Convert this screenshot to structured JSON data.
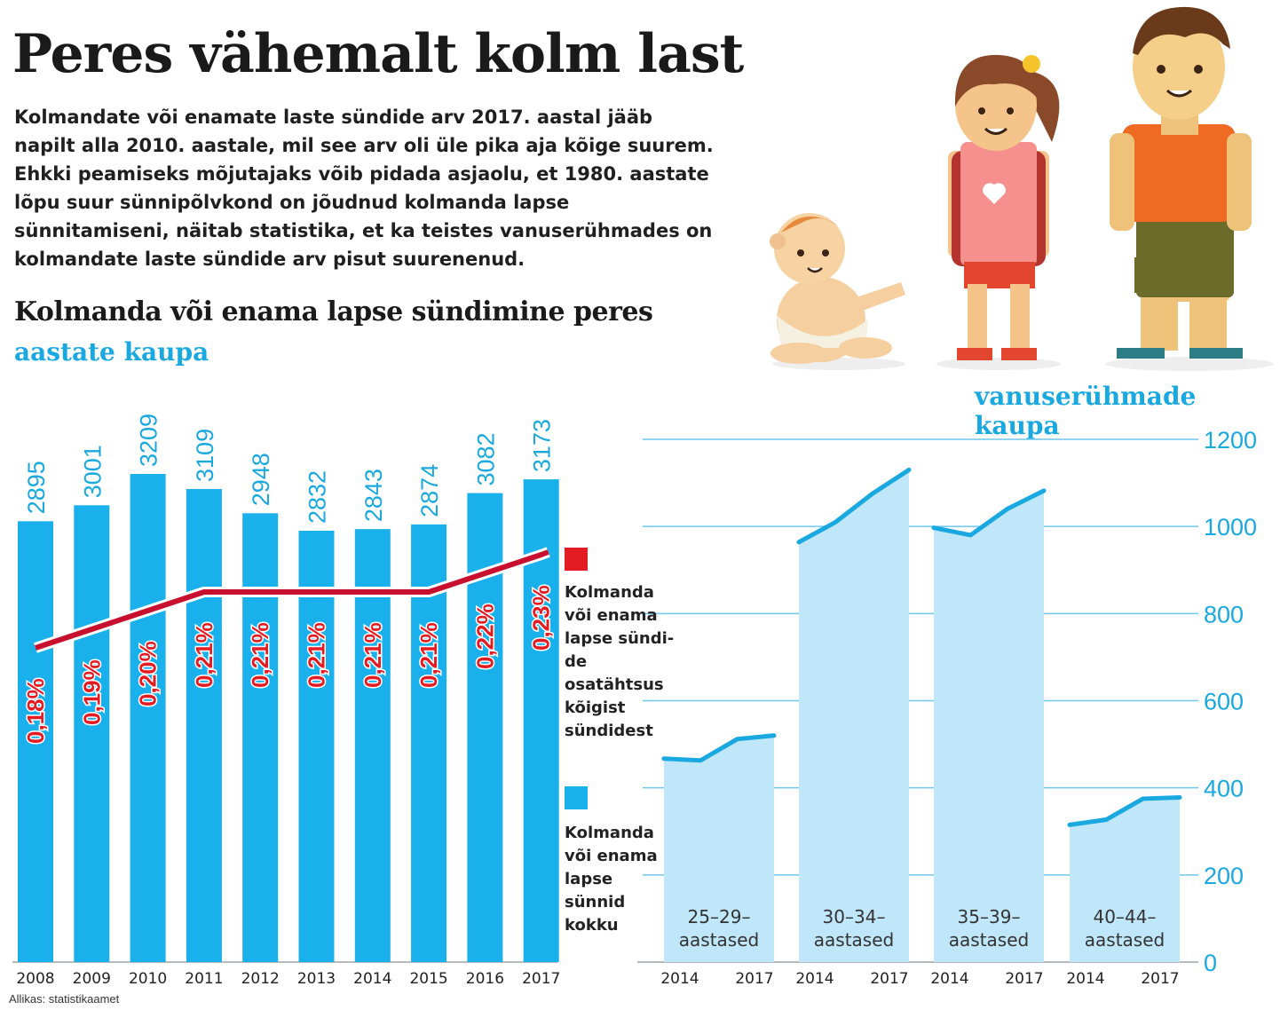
{
  "title": "Peres vähemalt kolm last",
  "intro": "Kolmandate või enamate laste sündide arv 2017. aastal jääb napilt alla 2010. aastale, mil see arv oli üle pika aja kõige suurem. Ehkki peamiseks mõjutajaks võib pidada asjaolu, et 1980. aastate lõpu suur sünnipõlvkond on jõudnud kolmanda lapse sünnitamiseni, näitab statistika, et ka teistes vanuserühmades on kolmandate laste sündide arv pisut suurenenud.",
  "subtitle": "Kolmanda või enama lapse sündimine peres",
  "by_year_label": "aastate kaupa",
  "by_age_label": "vanuserühmade kaupa",
  "source": "Allikas: statistikaamet",
  "legend": {
    "share": "Kolmanda\nvõi enama\nlapse sündi-\nde osatähtsus\nkõigist\nsündidest",
    "births": "Kolmanda\nvõi enama\nlapse\nsünnid\nkokku"
  },
  "colors": {
    "bar_blue": "#1ab0ec",
    "line_red": "#c8102e",
    "area_blue": "#bfe6f9",
    "area_line": "#19a8e0",
    "label_blue": "#19a8e0"
  },
  "chart_data": [
    {
      "type": "bar",
      "title": "aastate kaupa",
      "categories": [
        "2008",
        "2009",
        "2010",
        "2011",
        "2012",
        "2013",
        "2014",
        "2015",
        "2016",
        "2017"
      ],
      "series": [
        {
          "name": "Kolmanda või enama lapse sünnid kokku",
          "values": [
            2895,
            3001,
            3209,
            3109,
            2948,
            2832,
            2843,
            2874,
            3082,
            3173
          ]
        },
        {
          "name": "Kolmanda või enama lapse sündide osatähtsus kõigist sündidest",
          "type": "line",
          "values": [
            0.18,
            0.19,
            0.2,
            0.21,
            0.21,
            0.21,
            0.21,
            0.21,
            0.22,
            0.23
          ],
          "labels": [
            "0,18%",
            "0,19%",
            "0,20%",
            "0,21%",
            "0,21%",
            "0,21%",
            "0,21%",
            "0,21%",
            "0,22%",
            "0,23%"
          ]
        }
      ]
    },
    {
      "type": "area",
      "title": "vanuserühmade kaupa",
      "ylim": [
        0,
        1200
      ],
      "yticks": [
        0,
        200,
        400,
        600,
        800,
        1000,
        1200
      ],
      "groups": [
        {
          "name": "25–29–\naastased",
          "x": [
            "2014",
            "2015",
            "2016",
            "2017"
          ],
          "values": [
            467,
            463,
            512,
            520
          ]
        },
        {
          "name": "30–34–\naastased",
          "x": [
            "2014",
            "2015",
            "2016",
            "2017"
          ],
          "values": [
            964,
            1010,
            1075,
            1130
          ]
        },
        {
          "name": "35–39–\naastased",
          "x": [
            "2014",
            "2015",
            "2016",
            "2017"
          ],
          "values": [
            997,
            980,
            1040,
            1082
          ]
        },
        {
          "name": "40–44–\naastased",
          "x": [
            "2014",
            "2015",
            "2016",
            "2017"
          ],
          "values": [
            315,
            327,
            375,
            378
          ]
        }
      ],
      "xtick_labels": [
        "2014",
        "2017"
      ]
    }
  ]
}
